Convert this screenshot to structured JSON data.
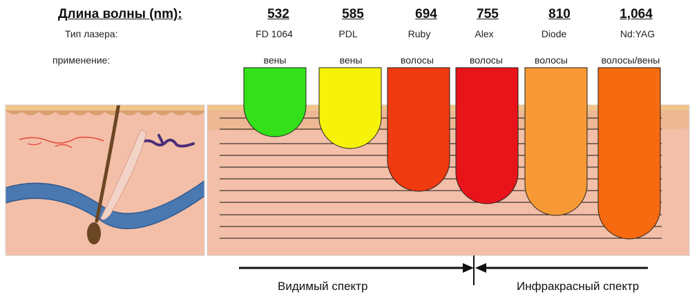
{
  "header": {
    "title": "Длина волны (nm):",
    "laser_row_label": "Тип лазера:",
    "use_row_label": "применение:"
  },
  "columns": [
    {
      "wavelength": "532",
      "laser": "FD 1064",
      "use": "вены",
      "color": "#33e01a",
      "depth": 1
    },
    {
      "wavelength": "585",
      "laser": "PDL",
      "use": "вены",
      "color": "#f7f20a",
      "depth": 2
    },
    {
      "wavelength": "694",
      "laser": "Ruby",
      "use": "волосы",
      "color": "#f03a10",
      "depth": 3
    },
    {
      "wavelength": "755",
      "laser": "Alex",
      "use": "волосы",
      "color": "#e8141a",
      "depth": 4
    },
    {
      "wavelength": "810",
      "laser": "Diode",
      "use": "волосы",
      "color": "#f79a36",
      "depth": 5
    },
    {
      "wavelength": "1,064",
      "laser": "Nd:YAG",
      "use": "волосы/вены",
      "color": "#f76a10",
      "depth": 6
    }
  ],
  "spectrum": {
    "visible_label": "Видимый спектр",
    "infrared_label": "Инфракрасный спектр"
  },
  "colors": {
    "skin": "#f4bfa8",
    "epidermis": "#e9b487",
    "dermis_top": "#f2c8a0",
    "vein": "#4a78b0",
    "hair": "#6a4624"
  }
}
